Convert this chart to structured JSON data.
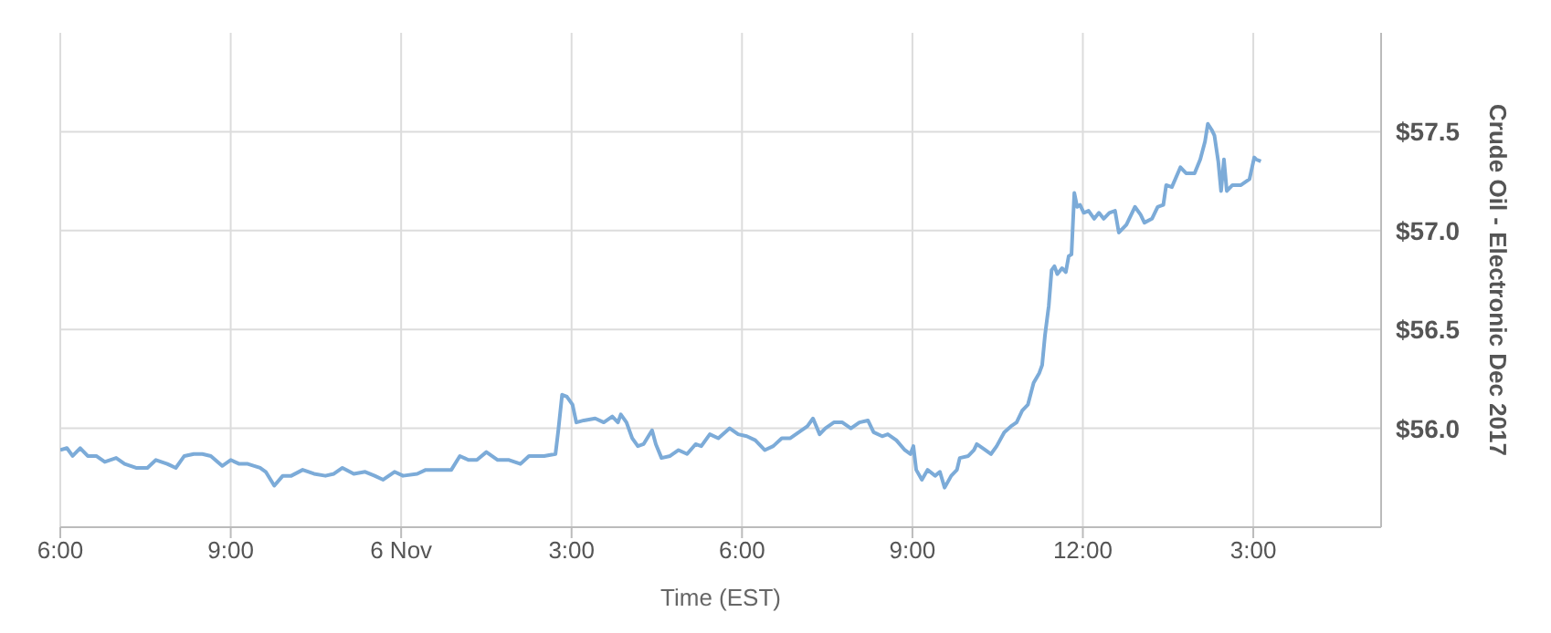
{
  "chart_data": {
    "type": "line",
    "xlabel": "Time (EST)",
    "ylabel": "Crude Oil - Electronic Dec 2017",
    "x": [
      "2017-11-05T18:00",
      "2017-11-05T18:07",
      "2017-11-05T18:13",
      "2017-11-05T18:21",
      "2017-11-05T18:29",
      "2017-11-05T18:38",
      "2017-11-05T18:47",
      "2017-11-05T18:59",
      "2017-11-05T19:08",
      "2017-11-05T19:20",
      "2017-11-05T19:32",
      "2017-11-05T19:41",
      "2017-11-05T19:53",
      "2017-11-05T20:02",
      "2017-11-05T20:11",
      "2017-11-05T20:21",
      "2017-11-05T20:30",
      "2017-11-05T20:39",
      "2017-11-05T20:51",
      "2017-11-05T21:00",
      "2017-11-05T21:09",
      "2017-11-05T21:18",
      "2017-11-05T21:31",
      "2017-11-05T21:37",
      "2017-11-05T21:46",
      "2017-11-05T21:55",
      "2017-11-05T22:04",
      "2017-11-05T22:16",
      "2017-11-05T22:28",
      "2017-11-05T22:40",
      "2017-11-05T22:49",
      "2017-11-05T22:58",
      "2017-11-05T23:10",
      "2017-11-05T23:22",
      "2017-11-05T23:32",
      "2017-11-05T23:41",
      "2017-11-05T23:53",
      "2017-11-06T00:02",
      "2017-11-06T00:17",
      "2017-11-06T00:26",
      "2017-11-06T00:41",
      "2017-11-06T00:53",
      "2017-11-06T01:02",
      "2017-11-06T01:11",
      "2017-11-06T01:20",
      "2017-11-06T01:30",
      "2017-11-06T01:42",
      "2017-11-06T01:54",
      "2017-11-06T02:06",
      "2017-11-06T02:15",
      "2017-11-06T02:31",
      "2017-11-06T02:43",
      "2017-11-06T02:46",
      "2017-11-06T02:50",
      "2017-11-06T02:55",
      "2017-11-06T03:01",
      "2017-11-06T03:05",
      "2017-11-06T03:13",
      "2017-11-06T03:25",
      "2017-11-06T03:34",
      "2017-11-06T03:43",
      "2017-11-06T03:49",
      "2017-11-06T03:52",
      "2017-11-06T03:58",
      "2017-11-06T04:04",
      "2017-11-06T04:10",
      "2017-11-06T04:16",
      "2017-11-06T04:25",
      "2017-11-06T04:29",
      "2017-11-06T04:35",
      "2017-11-06T04:44",
      "2017-11-06T04:53",
      "2017-11-06T05:02",
      "2017-11-06T05:11",
      "2017-11-06T05:17",
      "2017-11-06T05:26",
      "2017-11-06T05:35",
      "2017-11-06T05:47",
      "2017-11-06T05:56",
      "2017-11-06T06:05",
      "2017-11-06T06:14",
      "2017-11-06T06:24",
      "2017-11-06T06:33",
      "2017-11-06T06:42",
      "2017-11-06T06:51",
      "2017-11-06T07:00",
      "2017-11-06T07:09",
      "2017-11-06T07:15",
      "2017-11-06T07:22",
      "2017-11-06T07:28",
      "2017-11-06T07:37",
      "2017-11-06T07:46",
      "2017-11-06T07:55",
      "2017-11-06T08:04",
      "2017-11-06T08:13",
      "2017-11-06T08:19",
      "2017-11-06T08:28",
      "2017-11-06T08:34",
      "2017-11-06T08:43",
      "2017-11-06T08:52",
      "2017-11-06T08:58",
      "2017-11-06T09:01",
      "2017-11-06T09:04",
      "2017-11-06T09:10",
      "2017-11-06T09:16",
      "2017-11-06T09:24",
      "2017-11-06T09:29",
      "2017-11-06T09:34",
      "2017-11-06T09:41",
      "2017-11-06T09:47",
      "2017-11-06T09:50",
      "2017-11-06T09:59",
      "2017-11-06T10:05",
      "2017-11-06T10:08",
      "2017-11-06T10:17",
      "2017-11-06T10:23",
      "2017-11-06T10:29",
      "2017-11-06T10:37",
      "2017-11-06T10:44",
      "2017-11-06T10:50",
      "2017-11-06T10:56",
      "2017-11-06T11:02",
      "2017-11-06T11:08",
      "2017-11-06T11:14",
      "2017-11-06T11:17",
      "2017-11-06T11:20",
      "2017-11-06T11:24",
      "2017-11-06T11:27",
      "2017-11-06T11:30",
      "2017-11-06T11:33",
      "2017-11-06T11:38",
      "2017-11-06T11:42",
      "2017-11-06T11:45",
      "2017-11-06T11:48",
      "2017-11-06T11:51",
      "2017-11-06T11:54",
      "2017-11-06T11:57",
      "2017-11-06T12:01",
      "2017-11-06T12:06",
      "2017-11-06T12:12",
      "2017-11-06T12:17",
      "2017-11-06T12:22",
      "2017-11-06T12:28",
      "2017-11-06T12:34",
      "2017-11-06T12:38",
      "2017-11-06T12:46",
      "2017-11-06T12:55",
      "2017-11-06T13:01",
      "2017-11-06T13:05",
      "2017-11-06T13:13",
      "2017-11-06T13:19",
      "2017-11-06T13:25",
      "2017-11-06T13:28",
      "2017-11-06T13:34",
      "2017-11-06T13:43",
      "2017-11-06T13:49",
      "2017-11-06T13:58",
      "2017-11-06T14:04",
      "2017-11-06T14:09",
      "2017-11-06T14:12",
      "2017-11-06T14:16",
      "2017-11-06T14:19",
      "2017-11-06T14:23",
      "2017-11-06T14:26",
      "2017-11-06T14:29",
      "2017-11-06T14:32",
      "2017-11-06T14:38",
      "2017-11-06T14:47",
      "2017-11-06T14:56",
      "2017-11-06T15:01",
      "2017-11-06T15:03",
      "2017-11-06T15:08"
    ],
    "series": [
      {
        "color": "#7cabd8",
        "values": [
          55.89,
          55.9,
          55.86,
          55.9,
          55.86,
          55.86,
          55.83,
          55.85,
          55.82,
          55.8,
          55.8,
          55.84,
          55.82,
          55.8,
          55.86,
          55.87,
          55.87,
          55.86,
          55.81,
          55.84,
          55.82,
          55.82,
          55.8,
          55.78,
          55.71,
          55.76,
          55.76,
          55.79,
          55.77,
          55.76,
          55.77,
          55.8,
          55.77,
          55.78,
          55.76,
          55.74,
          55.78,
          55.76,
          55.77,
          55.79,
          55.79,
          55.79,
          55.86,
          55.84,
          55.84,
          55.88,
          55.84,
          55.84,
          55.82,
          55.86,
          55.86,
          55.87,
          55.99,
          56.17,
          56.16,
          56.12,
          56.03,
          56.04,
          56.05,
          56.03,
          56.06,
          56.03,
          56.07,
          56.03,
          55.95,
          55.91,
          55.92,
          55.99,
          55.92,
          55.85,
          55.86,
          55.89,
          55.87,
          55.92,
          55.91,
          55.97,
          55.95,
          56.0,
          55.97,
          55.96,
          55.94,
          55.89,
          55.91,
          55.95,
          55.95,
          55.98,
          56.01,
          56.05,
          55.97,
          56.0,
          56.03,
          56.03,
          56.0,
          56.03,
          56.04,
          55.98,
          55.96,
          55.97,
          55.94,
          55.89,
          55.87,
          55.91,
          55.79,
          55.74,
          55.79,
          55.76,
          55.78,
          55.7,
          55.76,
          55.79,
          55.85,
          55.86,
          55.89,
          55.92,
          55.89,
          55.87,
          55.91,
          55.98,
          56.01,
          56.03,
          56.09,
          56.12,
          56.23,
          56.28,
          56.32,
          56.47,
          56.62,
          56.8,
          56.82,
          56.78,
          56.81,
          56.79,
          56.87,
          56.88,
          57.19,
          57.12,
          57.13,
          57.09,
          57.1,
          57.06,
          57.09,
          57.06,
          57.09,
          57.1,
          56.99,
          57.03,
          57.12,
          57.08,
          57.04,
          57.06,
          57.12,
          57.13,
          57.23,
          57.22,
          57.32,
          57.29,
          57.29,
          57.36,
          57.45,
          57.54,
          57.51,
          57.48,
          57.35,
          57.2,
          57.36,
          57.2,
          57.23,
          57.23,
          57.26,
          57.37,
          57.36,
          57.35
        ]
      }
    ],
    "xlim": [
      "2017-11-05T18:00",
      "2017-11-06T17:15"
    ],
    "xticks": [
      {
        "value": "2017-11-05T18:00",
        "label": "6:00"
      },
      {
        "value": "2017-11-05T21:00",
        "label": "9:00"
      },
      {
        "value": "2017-11-06T00:00",
        "label": "6 Nov"
      },
      {
        "value": "2017-11-06T03:00",
        "label": "3:00"
      },
      {
        "value": "2017-11-06T06:00",
        "label": "6:00"
      },
      {
        "value": "2017-11-06T09:00",
        "label": "9:00"
      },
      {
        "value": "2017-11-06T12:00",
        "label": "12:00"
      },
      {
        "value": "2017-11-06T15:00",
        "label": "3:00"
      }
    ],
    "ylim": [
      55.5,
      58.0
    ],
    "yticks": [
      {
        "value": 56.0,
        "label": "$56.0"
      },
      {
        "value": 56.5,
        "label": "$56.5"
      },
      {
        "value": 57.0,
        "label": "$57.0"
      },
      {
        "value": 57.5,
        "label": "$57.5"
      }
    ],
    "grid": true,
    "legend": false,
    "marker": "none",
    "line_style": "solid"
  }
}
